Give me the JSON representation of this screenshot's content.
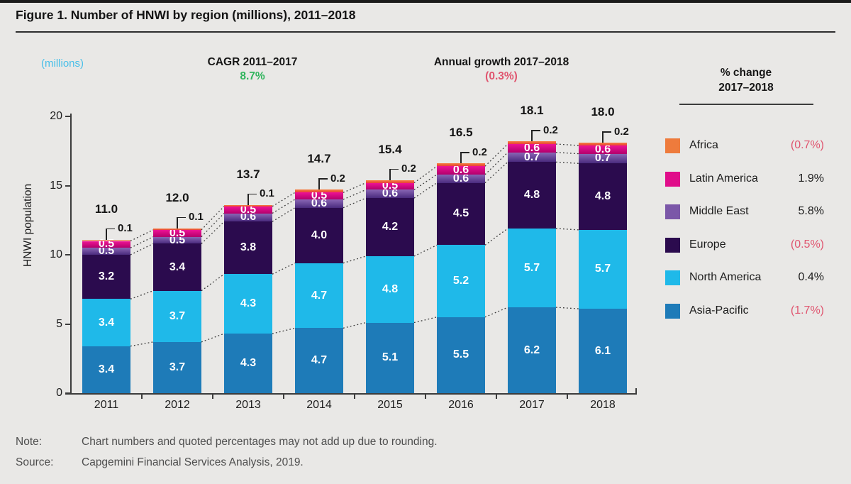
{
  "title": "Figure 1. Number of HNWI by region (millions), 2011–2018",
  "header": {
    "units_label": "(millions)",
    "cagr_label": "CAGR 2011–2017",
    "cagr_value": "8.7%",
    "growth_label": "Annual growth 2017–2018",
    "growth_value": "(0.3%)"
  },
  "axis": {
    "y_label": "HNWI population",
    "y_ticks": [
      0,
      5,
      10,
      15,
      20
    ],
    "y_max": 20
  },
  "legend": {
    "title_line1": "% change",
    "title_line2": "2017–2018",
    "items": [
      {
        "label": "Africa",
        "change": "(0.7%)",
        "negative": true,
        "color_key": "africa"
      },
      {
        "label": "Latin America",
        "change": "1.9%",
        "negative": false,
        "color_key": "latin_america"
      },
      {
        "label": "Middle East",
        "change": "5.8%",
        "negative": false,
        "color_key": "middle_east"
      },
      {
        "label": "Europe",
        "change": "(0.5%)",
        "negative": true,
        "color_key": "europe"
      },
      {
        "label": "North America",
        "change": "0.4%",
        "negative": false,
        "color_key": "north_america"
      },
      {
        "label": "Asia-Pacific",
        "change": "(1.7%)",
        "negative": true,
        "color_key": "asia_pacific"
      }
    ]
  },
  "chart_data": {
    "type": "bar",
    "stacked": true,
    "categories": [
      "2011",
      "2012",
      "2013",
      "2014",
      "2015",
      "2016",
      "2017",
      "2018"
    ],
    "series": [
      {
        "name": "Asia-Pacific",
        "color_key": "asia_pacific",
        "values": [
          3.4,
          3.7,
          4.3,
          4.7,
          5.1,
          5.5,
          6.2,
          6.1
        ]
      },
      {
        "name": "North America",
        "color_key": "north_america",
        "values": [
          3.4,
          3.7,
          4.3,
          4.7,
          4.8,
          5.2,
          5.7,
          5.7
        ]
      },
      {
        "name": "Europe",
        "color_key": "europe",
        "values": [
          3.2,
          3.4,
          3.8,
          4.0,
          4.2,
          4.5,
          4.8,
          4.8
        ]
      },
      {
        "name": "Middle East",
        "color_key": "middle_east",
        "values": [
          0.5,
          0.5,
          0.6,
          0.6,
          0.6,
          0.6,
          0.7,
          0.7
        ]
      },
      {
        "name": "Latin America",
        "color_key": "latin_america",
        "values": [
          0.5,
          0.5,
          0.5,
          0.5,
          0.5,
          0.6,
          0.6,
          0.6
        ],
        "callout_series_above": true
      },
      {
        "name": "Africa",
        "color_key": "africa",
        "values": [
          0.1,
          0.1,
          0.1,
          0.2,
          0.2,
          0.2,
          0.2,
          0.2
        ],
        "label_as_callout": true
      }
    ],
    "totals": [
      "11.0",
      "12.0",
      "13.7",
      "14.7",
      "15.4",
      "16.5",
      "18.1",
      "18.0"
    ],
    "title": "Number of HNWI by region (millions), 2011–2018",
    "xlabel": "",
    "ylabel": "HNWI population",
    "ylim": [
      0,
      20
    ],
    "grid": false,
    "legend_position": "right"
  },
  "footer": {
    "note_label": "Note:",
    "note_text": "Chart numbers and quoted percentages may not add up due to rounding.",
    "source_label": "Source:",
    "source_text": "Capgemini Financial Services Analysis, 2019."
  },
  "colors": {
    "asia_pacific": "#1E7BB8",
    "north_america": "#1FB9E9",
    "europe": "#2B0B4E",
    "middle_east": "#7B57A8",
    "middle_east_grad_top": "#8A66B5",
    "middle_east_grad_bottom": "#4A2B7E",
    "latin_america": "#E00D8A",
    "latin_america_grad_top": "#EE1395",
    "latin_america_grad_bottom": "#B3006C",
    "africa": "#EE7B3C",
    "africa_grad_top": "#F5813F",
    "africa_grad_bottom": "#E84038",
    "positive_green": "#2FB45C",
    "negative_rose": "#E05670",
    "units_cyan": "#49BFE8",
    "axis_dark": "#3C3C3C",
    "connector": "#3A3A3A"
  }
}
